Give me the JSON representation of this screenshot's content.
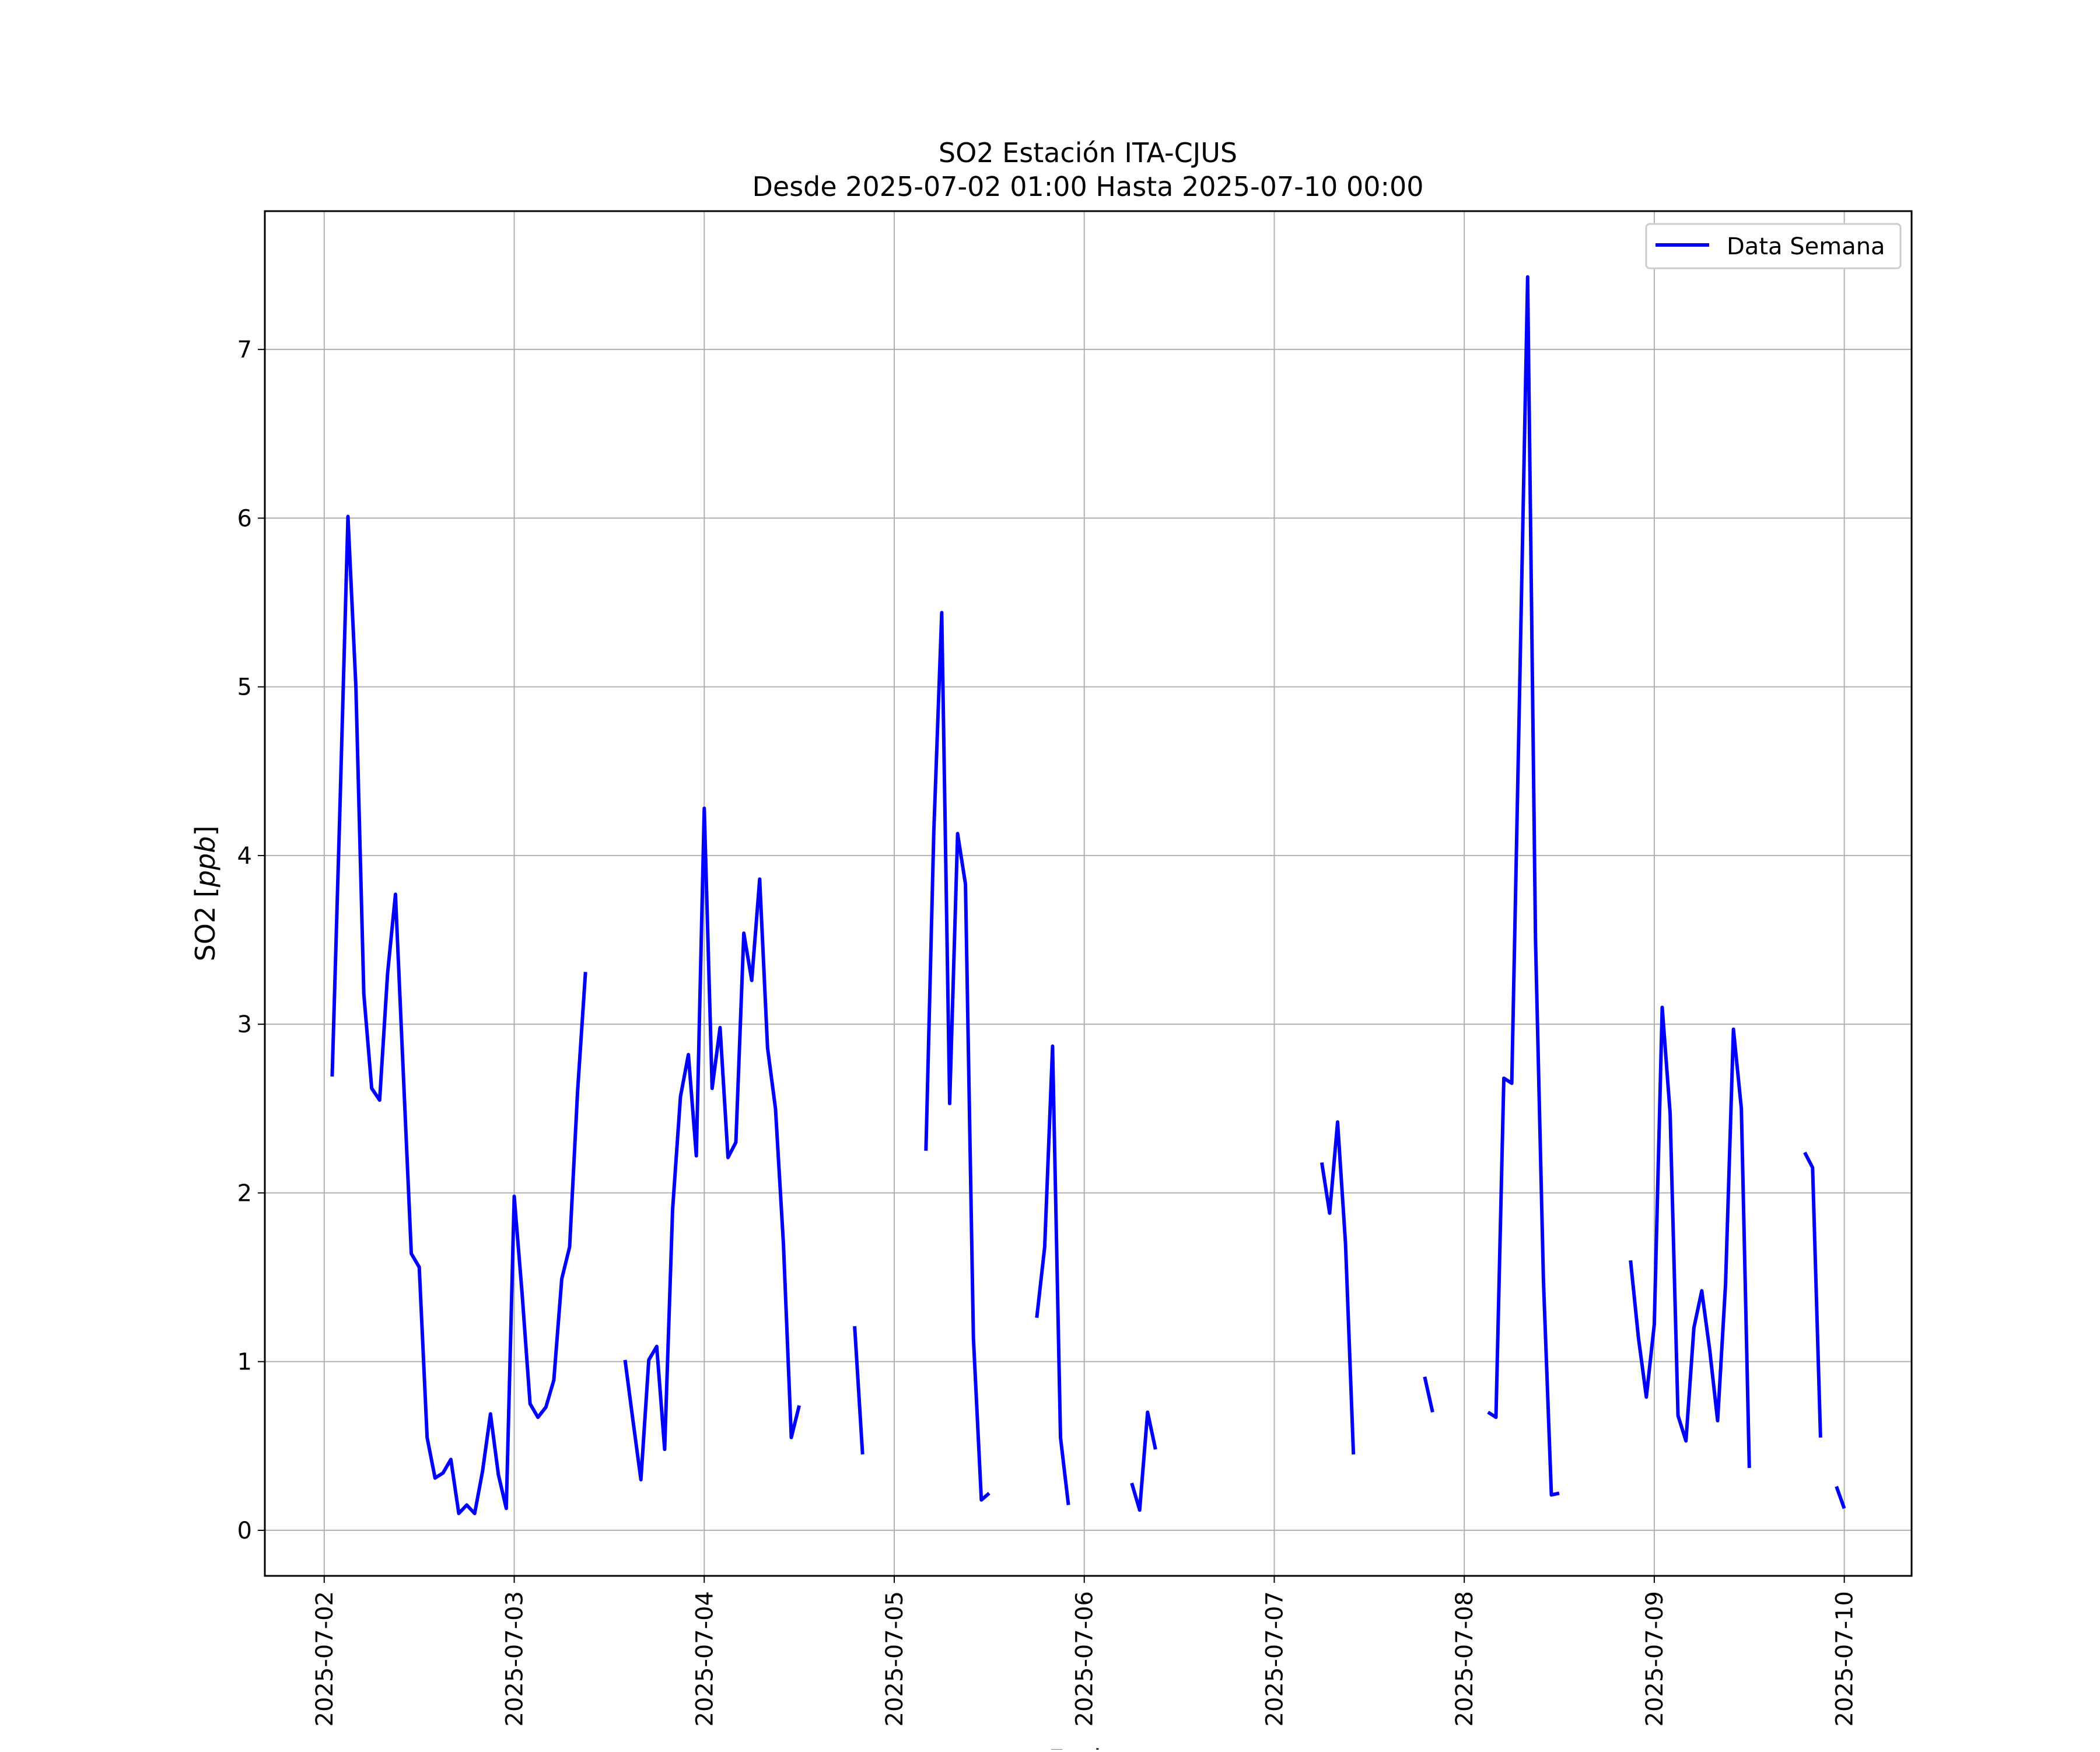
{
  "chart_data": {
    "type": "line",
    "title": "SO2 Estación ITA-CJUS",
    "subtitle": "Desde 2025-07-02 01:00 Hasta 2025-07-10 00:00",
    "xlabel": "Fecha",
    "ylabel": "SO2 [ppb]",
    "ylabel_prefix": "SO2 [",
    "ylabel_unit": "ppb",
    "ylabel_suffix": "]",
    "x_type": "datetime",
    "xlim": [
      "2025-07-01 16:30",
      "2025-07-10 08:30"
    ],
    "ylim": [
      -0.27,
      7.82
    ],
    "x_ticks": [
      "2025-07-02",
      "2025-07-03",
      "2025-07-04",
      "2025-07-05",
      "2025-07-06",
      "2025-07-07",
      "2025-07-08",
      "2025-07-09",
      "2025-07-10"
    ],
    "y_ticks": [
      0,
      1,
      2,
      3,
      4,
      5,
      6,
      7
    ],
    "grid": true,
    "legend": {
      "position": "top-right"
    },
    "series": [
      {
        "name": "Data Semana",
        "color": "#0000ff",
        "points": [
          [
            "2025-07-02 01:00",
            2.69
          ],
          [
            "2025-07-02 02:00",
            4.3
          ],
          [
            "2025-07-02 03:00",
            6.01
          ],
          [
            "2025-07-02 04:00",
            5.0
          ],
          [
            "2025-07-02 05:00",
            3.18
          ],
          [
            "2025-07-02 06:00",
            2.62
          ],
          [
            "2025-07-02 07:00",
            2.55
          ],
          [
            "2025-07-02 08:00",
            3.3
          ],
          [
            "2025-07-02 09:00",
            3.77
          ],
          [
            "2025-07-02 10:00",
            2.7
          ],
          [
            "2025-07-02 11:00",
            1.64
          ],
          [
            "2025-07-02 12:00",
            1.56
          ],
          [
            "2025-07-02 13:00",
            0.55
          ],
          [
            "2025-07-02 14:00",
            0.31
          ],
          [
            "2025-07-02 15:00",
            0.34
          ],
          [
            "2025-07-02 16:00",
            0.42
          ],
          [
            "2025-07-02 17:00",
            0.1
          ],
          [
            "2025-07-02 18:00",
            0.15
          ],
          [
            "2025-07-02 19:00",
            0.1
          ],
          [
            "2025-07-02 20:00",
            0.35
          ],
          [
            "2025-07-02 21:00",
            0.69
          ],
          [
            "2025-07-02 22:00",
            0.33
          ],
          [
            "2025-07-02 23:00",
            0.13
          ],
          [
            "2025-07-03 00:00",
            1.98
          ],
          [
            "2025-07-03 01:00",
            1.4
          ],
          [
            "2025-07-03 02:00",
            0.75
          ],
          [
            "2025-07-03 03:00",
            0.67
          ],
          [
            "2025-07-03 04:00",
            0.73
          ],
          [
            "2025-07-03 05:00",
            0.89
          ],
          [
            "2025-07-03 06:00",
            1.49
          ],
          [
            "2025-07-03 07:00",
            1.68
          ],
          [
            "2025-07-03 08:00",
            2.6
          ],
          [
            "2025-07-03 09:00",
            3.31
          ],
          [
            "2025-07-03 10:00",
            null
          ],
          [
            "2025-07-03 11:00",
            null
          ],
          [
            "2025-07-03 12:00",
            null
          ],
          [
            "2025-07-03 13:00",
            null
          ],
          [
            "2025-07-03 14:00",
            1.01
          ],
          [
            "2025-07-03 15:00",
            0.65
          ],
          [
            "2025-07-03 16:00",
            0.3
          ],
          [
            "2025-07-03 17:00",
            1.01
          ],
          [
            "2025-07-03 18:00",
            1.09
          ],
          [
            "2025-07-03 19:00",
            0.48
          ],
          [
            "2025-07-03 20:00",
            1.9
          ],
          [
            "2025-07-03 21:00",
            2.57
          ],
          [
            "2025-07-03 22:00",
            2.82
          ],
          [
            "2025-07-03 23:00",
            2.22
          ],
          [
            "2025-07-04 00:00",
            4.28
          ],
          [
            "2025-07-04 01:00",
            2.62
          ],
          [
            "2025-07-04 02:00",
            2.98
          ],
          [
            "2025-07-04 03:00",
            2.21
          ],
          [
            "2025-07-04 04:00",
            2.3
          ],
          [
            "2025-07-04 05:00",
            3.54
          ],
          [
            "2025-07-04 06:00",
            3.26
          ],
          [
            "2025-07-04 07:00",
            3.86
          ],
          [
            "2025-07-04 08:00",
            2.86
          ],
          [
            "2025-07-04 09:00",
            2.5
          ],
          [
            "2025-07-04 10:00",
            1.7
          ],
          [
            "2025-07-04 11:00",
            0.55
          ],
          [
            "2025-07-04 12:00",
            0.74
          ],
          [
            "2025-07-04 13:00",
            null
          ],
          [
            "2025-07-04 14:00",
            null
          ],
          [
            "2025-07-04 15:00",
            null
          ],
          [
            "2025-07-04 16:00",
            null
          ],
          [
            "2025-07-04 17:00",
            null
          ],
          [
            "2025-07-04 18:00",
            null
          ],
          [
            "2025-07-04 19:00",
            1.21
          ],
          [
            "2025-07-04 20:00",
            0.45
          ],
          [
            "2025-07-04 21:00",
            null
          ],
          [
            "2025-07-04 22:00",
            null
          ],
          [
            "2025-07-04 23:00",
            null
          ],
          [
            "2025-07-05 00:00",
            null
          ],
          [
            "2025-07-05 01:00",
            null
          ],
          [
            "2025-07-05 02:00",
            null
          ],
          [
            "2025-07-05 03:00",
            null
          ],
          [
            "2025-07-05 04:00",
            2.25
          ],
          [
            "2025-07-05 05:00",
            4.14
          ],
          [
            "2025-07-05 06:00",
            5.44
          ],
          [
            "2025-07-05 07:00",
            2.53
          ],
          [
            "2025-07-05 08:00",
            4.13
          ],
          [
            "2025-07-05 09:00",
            3.83
          ],
          [
            "2025-07-05 10:00",
            1.14
          ],
          [
            "2025-07-05 11:00",
            0.18
          ],
          [
            "2025-07-05 12:00",
            0.22
          ],
          [
            "2025-07-05 13:00",
            null
          ],
          [
            "2025-07-05 14:00",
            null
          ],
          [
            "2025-07-05 15:00",
            null
          ],
          [
            "2025-07-05 16:00",
            null
          ],
          [
            "2025-07-05 17:00",
            null
          ],
          [
            "2025-07-05 18:00",
            1.26
          ],
          [
            "2025-07-05 19:00",
            1.68
          ],
          [
            "2025-07-05 20:00",
            2.87
          ],
          [
            "2025-07-05 21:00",
            0.55
          ],
          [
            "2025-07-05 22:00",
            0.15
          ],
          [
            "2025-07-05 23:00",
            null
          ],
          [
            "2025-07-06 00:00",
            null
          ],
          [
            "2025-07-06 01:00",
            null
          ],
          [
            "2025-07-06 02:00",
            null
          ],
          [
            "2025-07-06 03:00",
            null
          ],
          [
            "2025-07-06 04:00",
            null
          ],
          [
            "2025-07-06 05:00",
            null
          ],
          [
            "2025-07-06 06:00",
            0.28
          ],
          [
            "2025-07-06 07:00",
            0.12
          ],
          [
            "2025-07-06 08:00",
            0.7
          ],
          [
            "2025-07-06 09:00",
            0.48
          ],
          [
            "2025-07-06 10:00",
            null
          ],
          [
            "2025-07-07 05:00",
            null
          ],
          [
            "2025-07-07 06:00",
            2.18
          ],
          [
            "2025-07-07 07:00",
            1.88
          ],
          [
            "2025-07-07 08:00",
            2.42
          ],
          [
            "2025-07-07 09:00",
            1.7
          ],
          [
            "2025-07-07 10:00",
            0.45
          ],
          [
            "2025-07-07 11:00",
            null
          ],
          [
            "2025-07-07 18:00",
            null
          ],
          [
            "2025-07-07 19:00",
            0.91
          ],
          [
            "2025-07-07 20:00",
            0.7
          ],
          [
            "2025-07-07 21:00",
            null
          ],
          [
            "2025-07-08 02:00",
            null
          ],
          [
            "2025-07-08 03:00",
            0.7
          ],
          [
            "2025-07-08 04:00",
            0.67
          ],
          [
            "2025-07-08 05:00",
            2.68
          ],
          [
            "2025-07-08 06:00",
            2.65
          ],
          [
            "2025-07-08 07:00",
            5.0
          ],
          [
            "2025-07-08 08:00",
            7.43
          ],
          [
            "2025-07-08 09:00",
            3.5
          ],
          [
            "2025-07-08 10:00",
            1.48
          ],
          [
            "2025-07-08 11:00",
            0.21
          ],
          [
            "2025-07-08 12:00",
            0.22
          ],
          [
            "2025-07-08 13:00",
            null
          ],
          [
            "2025-07-08 20:00",
            null
          ],
          [
            "2025-07-08 21:00",
            1.6
          ],
          [
            "2025-07-08 22:00",
            1.14
          ],
          [
            "2025-07-08 23:00",
            0.79
          ],
          [
            "2025-07-09 00:00",
            1.22
          ],
          [
            "2025-07-09 01:00",
            3.1
          ],
          [
            "2025-07-09 02:00",
            2.47
          ],
          [
            "2025-07-09 03:00",
            0.68
          ],
          [
            "2025-07-09 04:00",
            0.53
          ],
          [
            "2025-07-09 05:00",
            1.2
          ],
          [
            "2025-07-09 06:00",
            1.42
          ],
          [
            "2025-07-09 07:00",
            1.07
          ],
          [
            "2025-07-09 08:00",
            0.65
          ],
          [
            "2025-07-09 09:00",
            1.46
          ],
          [
            "2025-07-09 10:00",
            2.97
          ],
          [
            "2025-07-09 11:00",
            2.5
          ],
          [
            "2025-07-09 12:00",
            0.37
          ],
          [
            "2025-07-09 13:00",
            null
          ],
          [
            "2025-07-09 18:00",
            null
          ],
          [
            "2025-07-09 19:00",
            2.24
          ],
          [
            "2025-07-09 20:00",
            2.15
          ],
          [
            "2025-07-09 21:00",
            0.55
          ],
          [
            "2025-07-09 22:00",
            null
          ],
          [
            "2025-07-09 23:00",
            0.26
          ],
          [
            "2025-07-10 00:00",
            0.13
          ]
        ]
      }
    ]
  }
}
